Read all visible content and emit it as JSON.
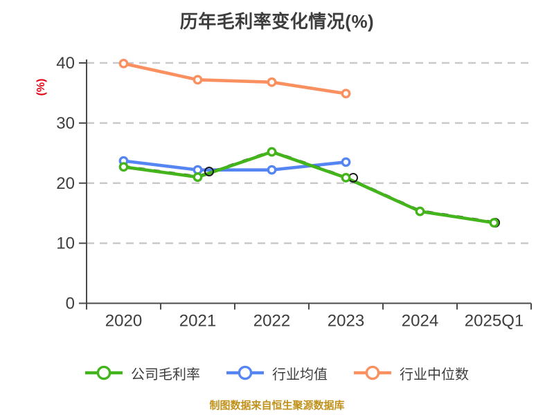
{
  "chart_data": {
    "type": "line",
    "title": "历年毛利率变化情况(%)",
    "ylabel": "(%)",
    "xlabel": "",
    "categories": [
      "2020",
      "2021",
      "2022",
      "2023",
      "2024",
      "2025Q1"
    ],
    "series": [
      {
        "name": "公司毛利率",
        "color": "#44b41c",
        "line_style": "solid-with-dark-dashes",
        "values": [
          22.7,
          21.0,
          25.2,
          20.9,
          15.3,
          13.4
        ]
      },
      {
        "name": "行业均值",
        "color": "#5585f2",
        "line_style": "solid",
        "values": [
          23.7,
          22.2,
          22.2,
          23.5,
          null,
          null
        ]
      },
      {
        "name": "行业中位数",
        "color": "#fa8f5f",
        "line_style": "solid",
        "values": [
          39.9,
          37.2,
          36.8,
          34.9,
          null,
          null
        ]
      }
    ],
    "ylim": [
      0,
      40
    ],
    "yticks": [
      0,
      10,
      20,
      30,
      40
    ],
    "grid": "horizontal-dashed",
    "legend_position": "bottom",
    "marker": "circle-white-fill"
  },
  "footer": {
    "credit": "制图数据来自恒生聚源数据库"
  },
  "style": {
    "background": "#ffffff",
    "title_color": "#3d3d3d",
    "axis_color": "#4a4a4a",
    "tick_label_color": "#3d3d3d",
    "grid_color": "#c9c9c9",
    "ylabel_color": "#e60012",
    "legend_label_color": "#3d3d3d",
    "footer_color": "#c0921c"
  }
}
